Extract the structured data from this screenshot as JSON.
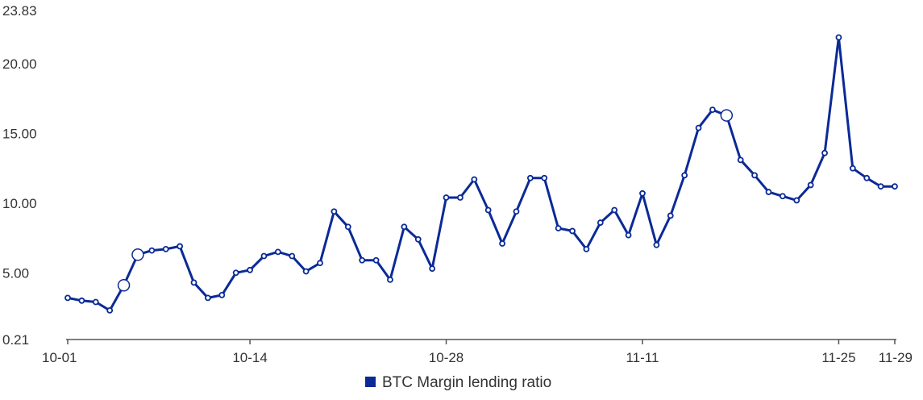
{
  "chart_data": {
    "type": "line",
    "title": "",
    "xlabel": "",
    "ylabel": "",
    "ylim": [
      0.21,
      23.83
    ],
    "grid": false,
    "legend_position": "bottom-center",
    "y_ticks": [
      "23.83",
      "20.00",
      "15.00",
      "10.00",
      "5.00",
      "0.21"
    ],
    "x_ticks": [
      "10-01",
      "10-14",
      "10-28",
      "11-11",
      "11-25",
      "11-29"
    ],
    "series": [
      {
        "name": "BTC Margin lending ratio",
        "color": "#0b2a96",
        "x": [
          "10-01",
          "10-02",
          "10-03",
          "10-04",
          "10-05",
          "10-06",
          "10-07",
          "10-08",
          "10-09",
          "10-10",
          "10-11",
          "10-12",
          "10-13",
          "10-14",
          "10-15",
          "10-16",
          "10-17",
          "10-18",
          "10-19",
          "10-20",
          "10-21",
          "10-22",
          "10-23",
          "10-24",
          "10-25",
          "10-26",
          "10-27",
          "10-28",
          "10-29",
          "10-30",
          "10-31",
          "11-01",
          "11-02",
          "11-03",
          "11-04",
          "11-05",
          "11-06",
          "11-07",
          "11-08",
          "11-09",
          "11-10",
          "11-11",
          "11-12",
          "11-13",
          "11-14",
          "11-15",
          "11-16",
          "11-17",
          "11-18",
          "11-19",
          "11-20",
          "11-21",
          "11-22",
          "11-23",
          "11-24",
          "11-25",
          "11-26",
          "11-27",
          "11-28",
          "11-29"
        ],
        "values": [
          3.2,
          3.0,
          2.9,
          2.3,
          4.1,
          6.3,
          6.6,
          6.7,
          6.9,
          4.3,
          3.2,
          3.4,
          5.0,
          5.2,
          6.2,
          6.5,
          6.2,
          5.1,
          5.7,
          9.4,
          8.3,
          5.9,
          5.9,
          4.5,
          8.3,
          7.4,
          5.3,
          10.4,
          10.4,
          11.7,
          9.5,
          7.1,
          9.4,
          11.8,
          11.8,
          8.2,
          8.0,
          6.7,
          8.6,
          9.5,
          7.7,
          10.7,
          7.0,
          9.1,
          12.0,
          15.4,
          16.7,
          16.3,
          13.1,
          12.0,
          10.8,
          10.5,
          10.2,
          11.3,
          13.6,
          21.9,
          12.5,
          11.8,
          11.2,
          11.2
        ],
        "highlighted_x": [
          "10-05",
          "10-06",
          "11-17"
        ]
      }
    ]
  }
}
